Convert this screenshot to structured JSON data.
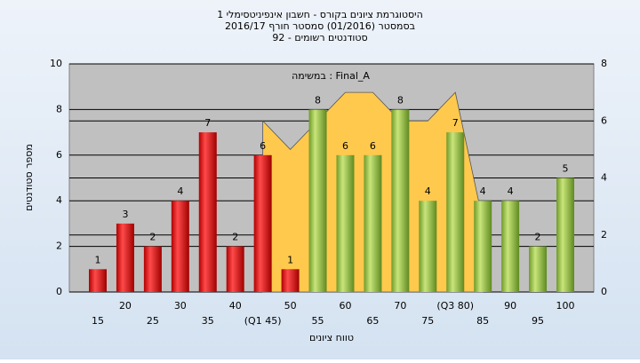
{
  "chart_data": {
    "type": "bar",
    "title_lines": [
      "היסטוגרמת ציונים בקורס - חשבון אינפיניטסימלי 1",
      "בסמסטר (01/2016)  סמסטר חורף 2016/17",
      "סטודנטים רשומים - 92"
    ],
    "annotation": "במשימה : Final_A",
    "ylabel": "מספר סטודנטים",
    "xlabel": "טווח ציונים",
    "categories": [
      "15",
      "20",
      "25",
      "30",
      "35",
      "40",
      "(Q1 45)",
      "50",
      "55",
      "60",
      "65",
      "70",
      "75",
      "(Q3 80)",
      "85",
      "90",
      "95",
      "100"
    ],
    "values": [
      1,
      3,
      2,
      4,
      7,
      2,
      6,
      1,
      8,
      6,
      6,
      8,
      4,
      7,
      4,
      4,
      2,
      5
    ],
    "colors": [
      "red",
      "red",
      "red",
      "red",
      "red",
      "red",
      "red",
      "red",
      "green",
      "green",
      "green",
      "green",
      "green",
      "green",
      "green",
      "green",
      "green",
      "green"
    ],
    "area": {
      "axis": "y2",
      "color": "#ffc94d",
      "values": [
        null,
        null,
        null,
        null,
        null,
        null,
        6,
        5,
        6,
        7,
        7,
        6,
        6,
        7,
        2.5,
        null,
        null,
        null
      ]
    },
    "ylim": [
      0,
      10
    ],
    "yticks": [
      0,
      2,
      4,
      6,
      8,
      10
    ],
    "y2lim": [
      0,
      8
    ],
    "y2ticks": [
      0,
      2,
      4,
      6,
      8
    ],
    "grid": true
  }
}
